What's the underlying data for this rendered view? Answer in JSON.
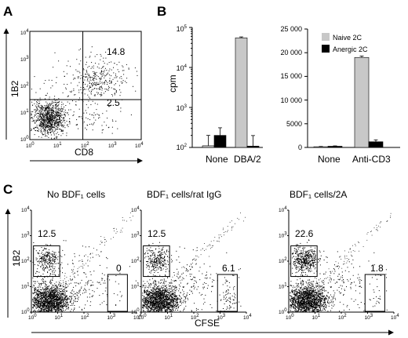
{
  "panels": {
    "A": {
      "letter": "A"
    },
    "B": {
      "letter": "B"
    },
    "C": {
      "letter": "C"
    }
  },
  "chart_data": [
    {
      "id": "A",
      "type": "scatter",
      "xlabel": "CD8",
      "ylabel": "1B2",
      "scale": "log",
      "xlim": [
        1,
        10000
      ],
      "ylim": [
        1,
        10000
      ],
      "ticks": [
        "10",
        "10",
        "10",
        "10",
        "10"
      ],
      "tick_exponents": [
        "0",
        "1",
        "2",
        "3",
        "4"
      ],
      "quadrant_values": {
        "upper_right": "14.8",
        "lower_right": "2.5"
      },
      "quadrant_lines": {
        "x": 80,
        "y": 30
      }
    },
    {
      "id": "B-left",
      "type": "bar",
      "ylabel": "cpm",
      "scale": "log",
      "ylim": [
        100,
        100000
      ],
      "yticks": [
        "10",
        "10",
        "10",
        "10"
      ],
      "ytick_exponents": [
        "2",
        "3",
        "4",
        "5"
      ],
      "categories": [
        "None",
        "DBA/2"
      ],
      "series": [
        {
          "name": "Naive 2C",
          "color": "#c8c8c8",
          "values": [
            110,
            55000
          ],
          "errors": [
            90,
            3000
          ]
        },
        {
          "name": "Anergic 2C",
          "color": "#000000",
          "values": [
            200,
            108
          ],
          "errors": [
            110,
            90
          ]
        }
      ]
    },
    {
      "id": "B-right",
      "type": "bar",
      "ylim": [
        0,
        25000
      ],
      "yticks": [
        "0",
        "5000",
        "10 000",
        "15 000",
        "20 000",
        "25 000"
      ],
      "categories": [
        "None",
        "Anti-CD3"
      ],
      "legend": {
        "position": "top-right",
        "entries": [
          "Naive 2C",
          "Anergic 2C"
        ]
      },
      "series": [
        {
          "name": "Naive 2C",
          "color": "#c8c8c8",
          "values": [
            150,
            19000
          ],
          "errors": [
            60,
            300
          ]
        },
        {
          "name": "Anergic 2C",
          "color": "#000000",
          "values": [
            250,
            1200
          ],
          "errors": [
            80,
            400
          ]
        }
      ]
    },
    {
      "id": "C",
      "type": "scatter",
      "xlabel": "CFSE",
      "ylabel": "1B2",
      "scale": "log",
      "xlim": [
        1,
        10000
      ],
      "ylim": [
        1,
        10000
      ],
      "plots": [
        {
          "title": "No BDF₁ cells",
          "gate_values": [
            "12.5",
            "0"
          ]
        },
        {
          "title": "BDF₁ cells/rat IgG",
          "gate_values": [
            "12.5",
            "6.1"
          ]
        },
        {
          "title": "BDF₁ cells/2A",
          "gate_values": [
            "22.6",
            "1.8"
          ]
        }
      ],
      "gates": {
        "upper_left": {
          "x": [
            1.2,
            12
          ],
          "y": [
            25,
            400
          ]
        },
        "lower_right": {
          "x": [
            800,
            4500
          ],
          "y": [
            1,
            30
          ]
        }
      }
    }
  ]
}
